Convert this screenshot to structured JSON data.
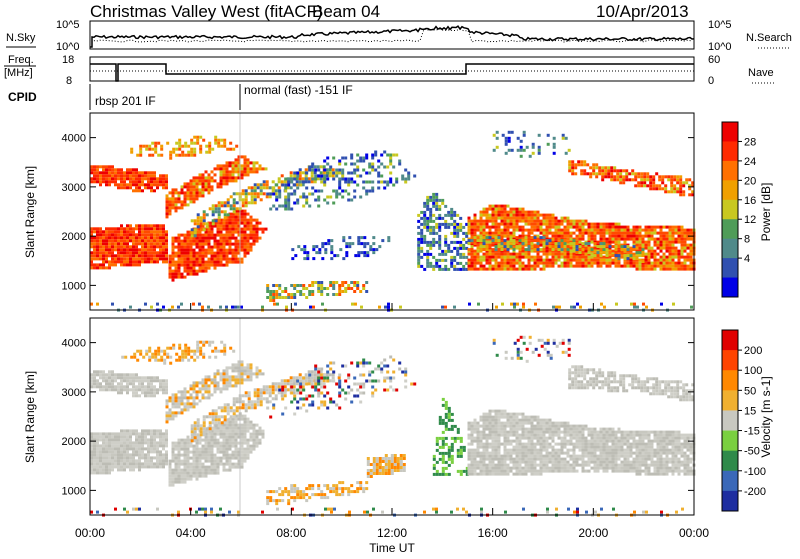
{
  "header": {
    "station": "Christmas Valley West (fitACF)",
    "beam": "Beam 04",
    "date": "10/Apr/2013"
  },
  "strip_labels": {
    "nsky": "N.Sky",
    "nsearch": "N.Search",
    "freq": "Freq.",
    "freq_unit": "[MHz]",
    "nave": "Nave",
    "cpid": "CPID",
    "nsky_ticks": [
      "10^5",
      "10^0"
    ],
    "nsearch_ticks": [
      "10^5",
      "10^0"
    ],
    "freq_ticks": [
      "18",
      "8"
    ],
    "nave_ticks": [
      "60",
      "0"
    ]
  },
  "cpid_modes": [
    "rbsp 201 IF",
    "normal (fast) -151 IF"
  ],
  "chart_data": [
    {
      "type": "heatmap",
      "panel": "power",
      "xlabel": "",
      "ylabel": "Slant Range [km]",
      "yticks": [
        "1000",
        "2000",
        "3000",
        "4000"
      ],
      "ylim": [
        500,
        4500
      ],
      "colorbar_label": "Power [dB]",
      "colorbar_ticks": [
        "28",
        "24",
        "20",
        "16",
        "12",
        "8",
        "4"
      ],
      "colorbar_colors": [
        "#0000e6",
        "#3050b0",
        "#508a8a",
        "#4f9c58",
        "#c8c820",
        "#f0a000",
        "#ff7000",
        "#ff2a00",
        "#ee0000"
      ]
    },
    {
      "type": "heatmap",
      "panel": "velocity",
      "xlabel": "Time UT",
      "ylabel": "Slant Range [km]",
      "yticks": [
        "1000",
        "2000",
        "3000",
        "4000"
      ],
      "ylim": [
        500,
        4500
      ],
      "xticks": [
        "00:00",
        "04:00",
        "08:00",
        "12:00",
        "16:00",
        "20:00",
        "00:00"
      ],
      "colorbar_label": "Velocity [m s-1]",
      "colorbar_ticks": [
        "200",
        "100",
        "50",
        "15",
        "-15",
        "-50",
        "-100",
        "-200"
      ],
      "colorbar_colors": [
        "#1e2ea0",
        "#3a68b8",
        "#2f8a4a",
        "#7ad040",
        "#c8c8c0",
        "#f0b030",
        "#ff8800",
        "#ff4400",
        "#e00000"
      ]
    }
  ]
}
